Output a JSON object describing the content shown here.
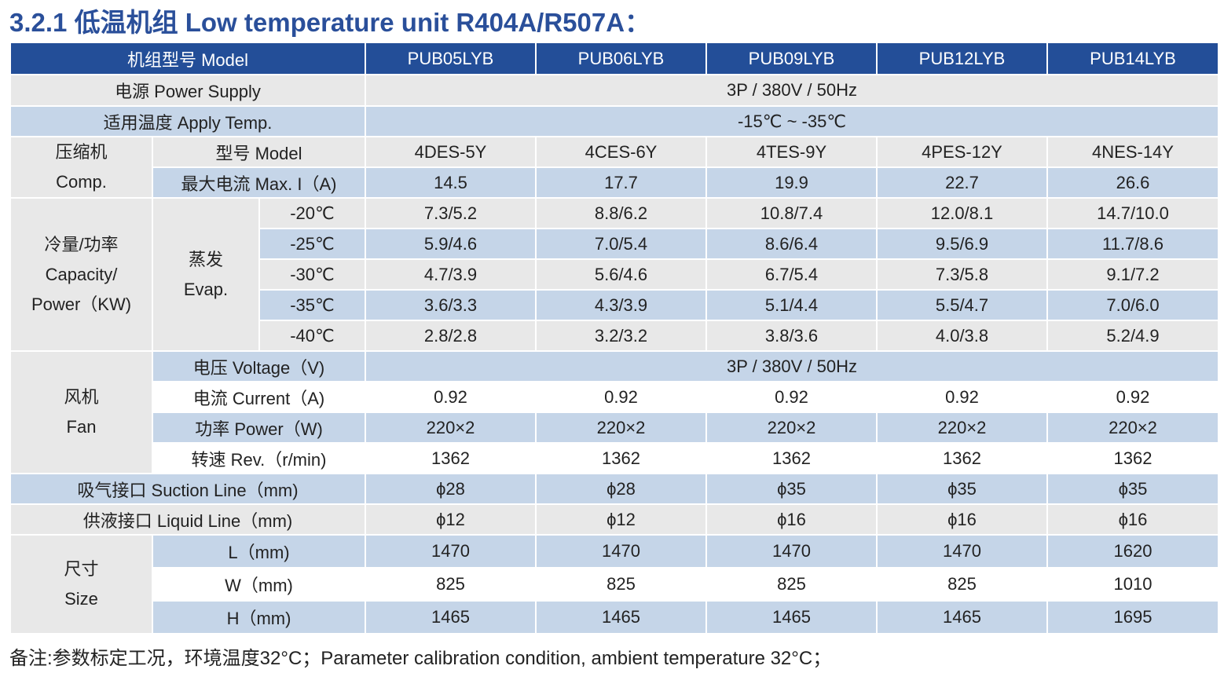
{
  "title": "3.2.1 低温机组 Low temperature unit  R404A/R507A：",
  "table": {
    "header_label": "机组型号 Model",
    "models": [
      "PUB05LYB",
      "PUB06LYB",
      "PUB09LYB",
      "PUB12LYB",
      "PUB14LYB"
    ],
    "power_supply": {
      "label": "电源 Power Supply",
      "value": "3P / 380V / 50Hz"
    },
    "apply_temp": {
      "label": "适用温度 Apply Temp.",
      "value": "-15℃ ~ -35℃"
    },
    "compressor": {
      "group_line1": "压缩机",
      "group_line2": "Comp.",
      "model_label": "型号 Model",
      "models": [
        "4DES-5Y",
        "4CES-6Y",
        "4TES-9Y",
        "4PES-12Y",
        "4NES-14Y"
      ],
      "current_label": "最大电流 Max. I（A)",
      "currents": [
        "14.5",
        "17.7",
        "19.9",
        "22.7",
        "26.6"
      ]
    },
    "capacity": {
      "group_line1": "冷量/功率",
      "group_line2": "Capacity/",
      "group_line3": "Power（KW)",
      "evap_line1": "蒸发",
      "evap_line2": "Evap.",
      "rows": [
        {
          "temp": "-20℃",
          "values": [
            "7.3/5.2",
            "8.8/6.2",
            "10.8/7.4",
            "12.0/8.1",
            "14.7/10.0"
          ]
        },
        {
          "temp": "-25℃",
          "values": [
            "5.9/4.6",
            "7.0/5.4",
            "8.6/6.4",
            "9.5/6.9",
            "11.7/8.6"
          ]
        },
        {
          "temp": "-30℃",
          "values": [
            "4.7/3.9",
            "5.6/4.6",
            "6.7/5.4",
            "7.3/5.8",
            "9.1/7.2"
          ]
        },
        {
          "temp": "-35℃",
          "values": [
            "3.6/3.3",
            "4.3/3.9",
            "5.1/4.4",
            "5.5/4.7",
            "7.0/6.0"
          ]
        },
        {
          "temp": "-40℃",
          "values": [
            "2.8/2.8",
            "3.2/3.2",
            "3.8/3.6",
            "4.0/3.8",
            "5.2/4.9"
          ]
        }
      ]
    },
    "fan": {
      "group_line1": "风机",
      "group_line2": "Fan",
      "voltage_label": "电压 Voltage（V)",
      "voltage_value": "3P / 380V / 50Hz",
      "current_label": "电流 Current（A)",
      "currents": [
        "0.92",
        "0.92",
        "0.92",
        "0.92",
        "0.92"
      ],
      "power_label": "功率 Power（W)",
      "powers": [
        "220×2",
        "220×2",
        "220×2",
        "220×2",
        "220×2"
      ],
      "rev_label": "转速 Rev.（r/min)",
      "revs": [
        "1362",
        "1362",
        "1362",
        "1362",
        "1362"
      ]
    },
    "suction": {
      "label": "吸气接口 Suction Line（mm)",
      "values": [
        "ϕ28",
        "ϕ28",
        "ϕ35",
        "ϕ35",
        "ϕ35"
      ]
    },
    "liquid": {
      "label": "供液接口 Liquid Line（mm)",
      "values": [
        "ϕ12",
        "ϕ12",
        "ϕ16",
        "ϕ16",
        "ϕ16"
      ]
    },
    "size": {
      "group_line1": "尺寸",
      "group_line2": "Size",
      "rows": [
        {
          "label": "L（mm)",
          "values": [
            "1470",
            "1470",
            "1470",
            "1470",
            "1620"
          ]
        },
        {
          "label": "W（mm)",
          "values": [
            "825",
            "825",
            "825",
            "825",
            "1010"
          ]
        },
        {
          "label": "H（mm)",
          "values": [
            "1465",
            "1465",
            "1465",
            "1465",
            "1695"
          ]
        }
      ]
    }
  },
  "footnote": "备注:参数标定工况，环境温度32°C；Parameter calibration condition, ambient temperature 32°C；",
  "colors": {
    "header": "#234e98",
    "title": "#2a4f9a",
    "row_gray": "#e8e8e8",
    "row_blue": "#c5d5e8"
  }
}
